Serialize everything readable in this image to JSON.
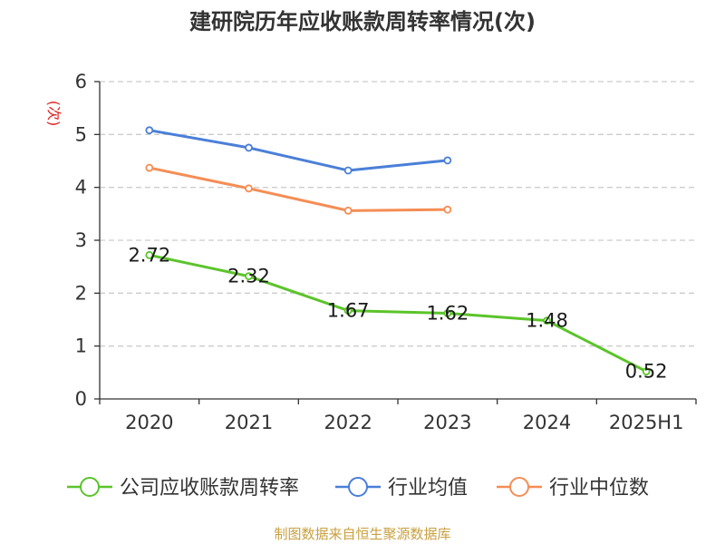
{
  "title": "建研院历年应收账款周转率情况(次)",
  "source": "制图数据来自恒生聚源数据库",
  "chart_data": {
    "type": "line",
    "title": "建研院历年应收账款周转率情况(次)",
    "ylabel": "(次)",
    "xlabel": "",
    "categories": [
      "2020",
      "2021",
      "2022",
      "2023",
      "2024",
      "2025H1"
    ],
    "ylim": [
      0,
      6
    ],
    "yticks": [
      0,
      1,
      2,
      3,
      4,
      5,
      6
    ],
    "grid": true,
    "legend_position": "bottom",
    "series": [
      {
        "name": "公司应收账款周转率",
        "color": "#5bc42a",
        "values": [
          2.72,
          2.32,
          1.67,
          1.62,
          1.48,
          0.52
        ],
        "labels": [
          "2.72",
          "2.32",
          "1.67",
          "1.62",
          "1.48",
          "0.52"
        ]
      },
      {
        "name": "行业均值",
        "color": "#4a7fd8",
        "values": [
          5.08,
          4.75,
          4.32,
          4.51,
          null,
          null
        ]
      },
      {
        "name": "行业中位数",
        "color": "#f58d55",
        "values": [
          4.37,
          3.98,
          3.56,
          3.58,
          null,
          null
        ]
      }
    ]
  }
}
